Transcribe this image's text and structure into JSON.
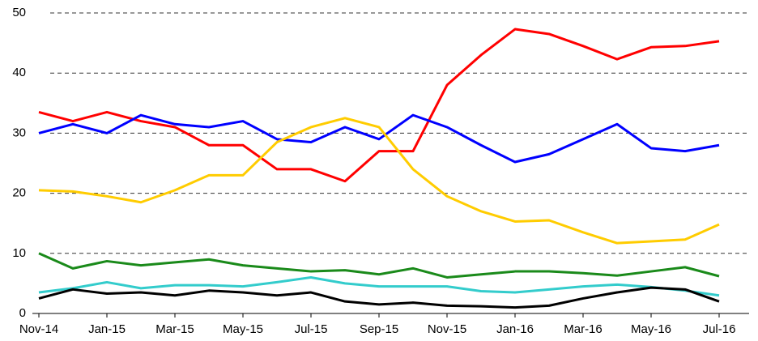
{
  "chart_data": {
    "type": "line",
    "categories": [
      "Nov-14",
      null,
      "Jan-15",
      null,
      "Mar-15",
      null,
      "May-15",
      null,
      "Jul-15",
      null,
      "Sep-15",
      null,
      "Nov-15",
      null,
      "Jan-16",
      null,
      "Mar-16",
      null,
      "May-16",
      null,
      "Jul-16"
    ],
    "series": [
      {
        "color": "#ff0000",
        "values": [
          33.5,
          32,
          33.5,
          32,
          31,
          28,
          28,
          24,
          24,
          22,
          27,
          27,
          38,
          43,
          47.3,
          46.5,
          44.5,
          42.3,
          44.3,
          44.5,
          45.3
        ]
      },
      {
        "color": "#0000ff",
        "values": [
          30,
          31.5,
          30,
          33,
          31.5,
          31,
          32,
          29,
          28.5,
          31,
          29,
          33,
          31,
          28,
          25.2,
          26.5,
          29,
          31.5,
          27.5,
          27,
          28
        ]
      },
      {
        "color": "#ffcc00",
        "values": [
          20.5,
          20.3,
          19.5,
          18.5,
          20.5,
          23,
          23,
          28.5,
          31,
          32.5,
          31,
          24,
          19.5,
          17,
          15.3,
          15.5,
          13.5,
          11.7,
          12,
          12.3,
          14.8
        ]
      },
      {
        "color": "#1a8a1a",
        "values": [
          10,
          7.5,
          8.7,
          8,
          8.5,
          9,
          8,
          7.5,
          7,
          7.2,
          6.5,
          7.5,
          6,
          6.5,
          7,
          7,
          6.7,
          6.3,
          7,
          7.7,
          6.2
        ]
      },
      {
        "color": "#33cccc",
        "values": [
          3.5,
          4.2,
          5.2,
          4.2,
          4.7,
          4.7,
          4.5,
          5.2,
          6,
          5,
          4.5,
          4.5,
          4.5,
          3.7,
          3.5,
          4,
          4.5,
          4.8,
          4.4,
          3.8,
          3
        ]
      },
      {
        "color": "#000000",
        "values": [
          2.5,
          4,
          3.3,
          3.5,
          3,
          3.8,
          3.5,
          3,
          3.5,
          2,
          1.5,
          1.8,
          1.3,
          1.2,
          1,
          1.3,
          2.5,
          3.5,
          4.3,
          4,
          2
        ]
      }
    ],
    "ylim": [
      0,
      50
    ],
    "yticks": [
      0,
      10,
      20,
      30,
      40,
      50
    ],
    "grid": true
  }
}
